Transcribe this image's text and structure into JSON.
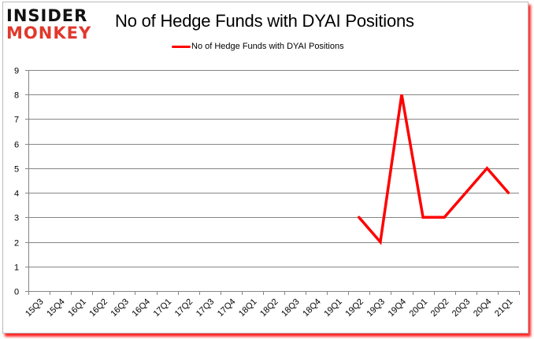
{
  "brand": {
    "line1": "INSIDER",
    "line2": "MONKEY"
  },
  "chart_data": {
    "type": "line",
    "title": "No of Hedge Funds with DYAI Positions",
    "xlabel": "",
    "ylabel": "",
    "ylim": [
      0,
      9
    ],
    "yticks": [
      0,
      1,
      2,
      3,
      4,
      5,
      6,
      7,
      8,
      9
    ],
    "grid": true,
    "legend_position": "top",
    "categories": [
      "15Q3",
      "15Q4",
      "16Q1",
      "16Q2",
      "16Q3",
      "16Q4",
      "17Q1",
      "17Q2",
      "17Q3",
      "17Q4",
      "18Q1",
      "18Q2",
      "18Q3",
      "18Q4",
      "19Q1",
      "19Q2",
      "19Q3",
      "19Q4",
      "20Q1",
      "20Q2",
      "20Q3",
      "20Q4",
      "21Q1"
    ],
    "series": [
      {
        "name": "No of Hedge Funds with DYAI Positions",
        "color": "#ff0000",
        "values": [
          null,
          null,
          null,
          null,
          null,
          null,
          null,
          null,
          null,
          null,
          null,
          null,
          null,
          null,
          null,
          3,
          2,
          8,
          3,
          3,
          4,
          5,
          4
        ]
      }
    ]
  }
}
